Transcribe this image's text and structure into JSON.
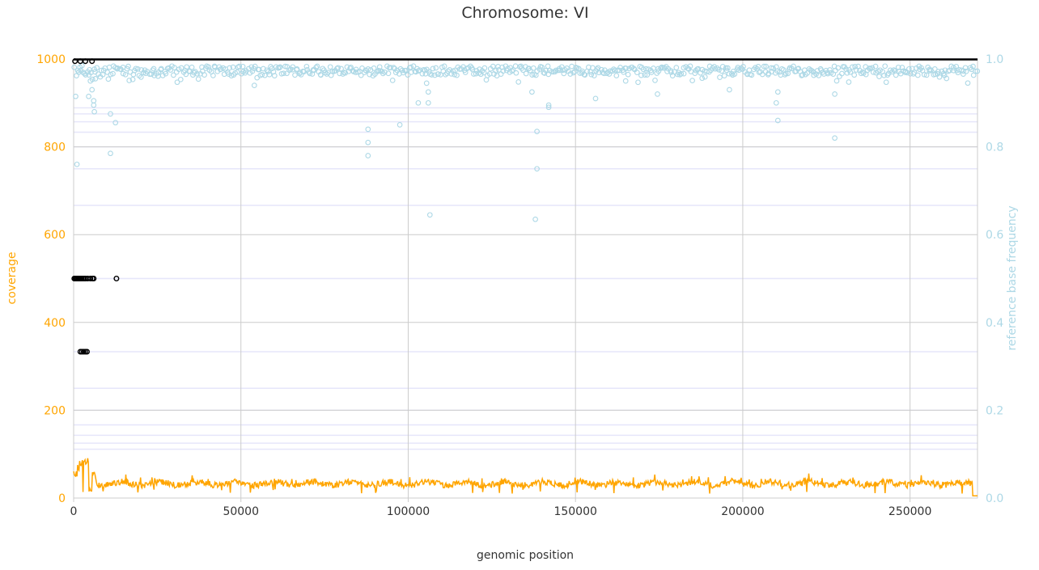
{
  "chart_data": {
    "type": "line",
    "title": "Chromosome: VI",
    "xlabel": "genomic position",
    "ylabel_left": "coverage",
    "ylabel_right": "reference base frequency",
    "xlim": [
      0,
      270161
    ],
    "ylim_left": [
      0,
      1000
    ],
    "ylim_right": [
      0.0,
      1.0
    ],
    "x_ticks": [
      0,
      50000,
      100000,
      150000,
      200000,
      250000
    ],
    "x_tick_labels": [
      "0",
      "50000",
      "100000",
      "150000",
      "200000",
      "250000"
    ],
    "y_left_ticks": [
      0,
      200,
      400,
      600,
      800,
      1000
    ],
    "y_left_tick_labels": [
      "0",
      "200",
      "400",
      "600",
      "800",
      "1000"
    ],
    "y_right_ticks": [
      0.0,
      0.2,
      0.4,
      0.6,
      0.8,
      1.0
    ],
    "y_right_tick_labels": [
      "0.0",
      "0.2",
      "0.4",
      "0.6",
      "0.8",
      "1.0"
    ],
    "grid": true,
    "colors": {
      "coverage": "#ffa500",
      "frequency": "#add8e6",
      "special_frequency": "#000000",
      "grid": "#cccccc",
      "ref_lines": "#e6e6fa",
      "title": "#333333",
      "axis_text": "#333333"
    },
    "horizontal_reference_frequencies": [
      0.1111,
      0.125,
      0.1429,
      0.1667,
      0.2,
      0.25,
      0.3333,
      0.5,
      0.6667,
      0.75,
      0.8,
      0.8333,
      0.8571,
      0.875,
      0.8889,
      1.0
    ],
    "special_frequency_points": [
      [
        200,
        0.5
      ],
      [
        500,
        0.5
      ],
      [
        800,
        0.5
      ],
      [
        1100,
        0.5
      ],
      [
        1400,
        0.5
      ],
      [
        1700,
        0.5
      ],
      [
        2000,
        0.5
      ],
      [
        2400,
        0.5
      ],
      [
        2800,
        0.5
      ],
      [
        3200,
        0.5
      ],
      [
        3600,
        0.5
      ],
      [
        4200,
        0.5
      ],
      [
        5000,
        0.5
      ],
      [
        5600,
        0.5
      ],
      [
        6000,
        0.5
      ],
      [
        12800,
        0.5
      ],
      [
        2000,
        0.3333
      ],
      [
        2500,
        0.3333
      ],
      [
        3000,
        0.3333
      ],
      [
        3500,
        0.3333
      ],
      [
        4000,
        0.3333
      ],
      [
        400,
        0.995
      ],
      [
        2000,
        0.995
      ],
      [
        3500,
        0.995
      ],
      [
        5500,
        0.995
      ]
    ],
    "outlier_frequency_points": [
      [
        600,
        0.915
      ],
      [
        1000,
        0.76
      ],
      [
        1500,
        0.97
      ],
      [
        2500,
        0.985
      ],
      [
        4500,
        0.915
      ],
      [
        5000,
        0.95
      ],
      [
        5500,
        0.93
      ],
      [
        6000,
        0.905
      ],
      [
        6000,
        0.895
      ],
      [
        6200,
        0.88
      ],
      [
        6500,
        0.955
      ],
      [
        11000,
        0.875
      ],
      [
        11000,
        0.785
      ],
      [
        12500,
        0.855
      ],
      [
        54000,
        0.94
      ],
      [
        88000,
        0.84
      ],
      [
        88000,
        0.81
      ],
      [
        88000,
        0.78
      ],
      [
        97500,
        0.85
      ],
      [
        103000,
        0.9
      ],
      [
        105500,
        0.945
      ],
      [
        106000,
        0.925
      ],
      [
        106000,
        0.9
      ],
      [
        106500,
        0.645
      ],
      [
        137000,
        0.925
      ],
      [
        138000,
        0.635
      ],
      [
        138500,
        0.835
      ],
      [
        138500,
        0.75
      ],
      [
        142000,
        0.895
      ],
      [
        142000,
        0.89
      ],
      [
        156000,
        0.91
      ],
      [
        165000,
        0.95
      ],
      [
        174500,
        0.92
      ],
      [
        196000,
        0.93
      ],
      [
        210000,
        0.9
      ],
      [
        210500,
        0.86
      ],
      [
        210500,
        0.925
      ],
      [
        227500,
        0.92
      ],
      [
        227500,
        0.82
      ]
    ]
  }
}
